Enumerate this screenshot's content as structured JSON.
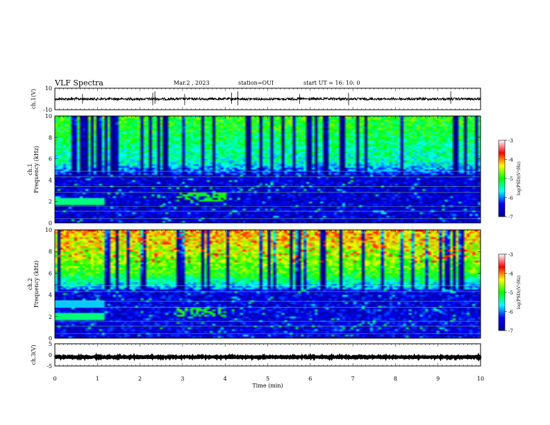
{
  "header": {
    "title": "VLF Spectra",
    "date": "Mar.2  , 2023",
    "station": "station=OUI",
    "start": "start  UT =   16: 10: 0"
  },
  "colors": {
    "colormap": [
      "#00008f",
      "#0000ff",
      "#00ffff",
      "#00ff00",
      "#ffff00",
      "#ff0000",
      "#ffffff"
    ]
  },
  "chart_data": [
    {
      "type": "line",
      "panel": "ch.1 waveform",
      "ylabel": "ch.1(V)",
      "ylim": [
        -10,
        10
      ],
      "yticks": [
        "10",
        "-10"
      ],
      "xlim": [
        0,
        10
      ],
      "baseline": 0
    },
    {
      "type": "heatmap",
      "panel": "ch.1 spectrogram",
      "ylabel": "ch.1 Frequency (kHz)",
      "ylim": [
        0,
        10
      ],
      "yticks": [
        "0",
        "2",
        "4",
        "6",
        "8",
        "10"
      ],
      "xlim": [
        0,
        10
      ],
      "colorbar": {
        "label": "log(PSD)(V²/Hz)",
        "ticks": [
          "-3",
          "-4",
          "-5",
          "-6",
          "-7"
        ],
        "range": [
          -7,
          -3
        ]
      }
    },
    {
      "type": "heatmap",
      "panel": "ch.2 spectrogram",
      "ylabel": "ch.2 Frequency (kHz)",
      "ylim": [
        0,
        10
      ],
      "yticks": [
        "0",
        "2",
        "4",
        "6",
        "8",
        "10"
      ],
      "xlim": [
        0,
        10
      ],
      "colorbar": {
        "label": "log(PSD)(V²/Hz)",
        "ticks": [
          "-3",
          "-4",
          "-5",
          "-6",
          "-7"
        ],
        "range": [
          -7,
          -3
        ]
      }
    },
    {
      "type": "line",
      "panel": "ch.3 waveform",
      "ylabel": "ch.3(V)",
      "ylim": [
        -5,
        5
      ],
      "yticks": [
        "5",
        "0",
        "-5"
      ],
      "xlim": [
        0,
        10
      ],
      "baseline": -1,
      "xlabel": "Time  (min)",
      "xticks": [
        "0",
        "1",
        "2",
        "3",
        "4",
        "5",
        "6",
        "7",
        "8",
        "9",
        "10"
      ]
    }
  ]
}
